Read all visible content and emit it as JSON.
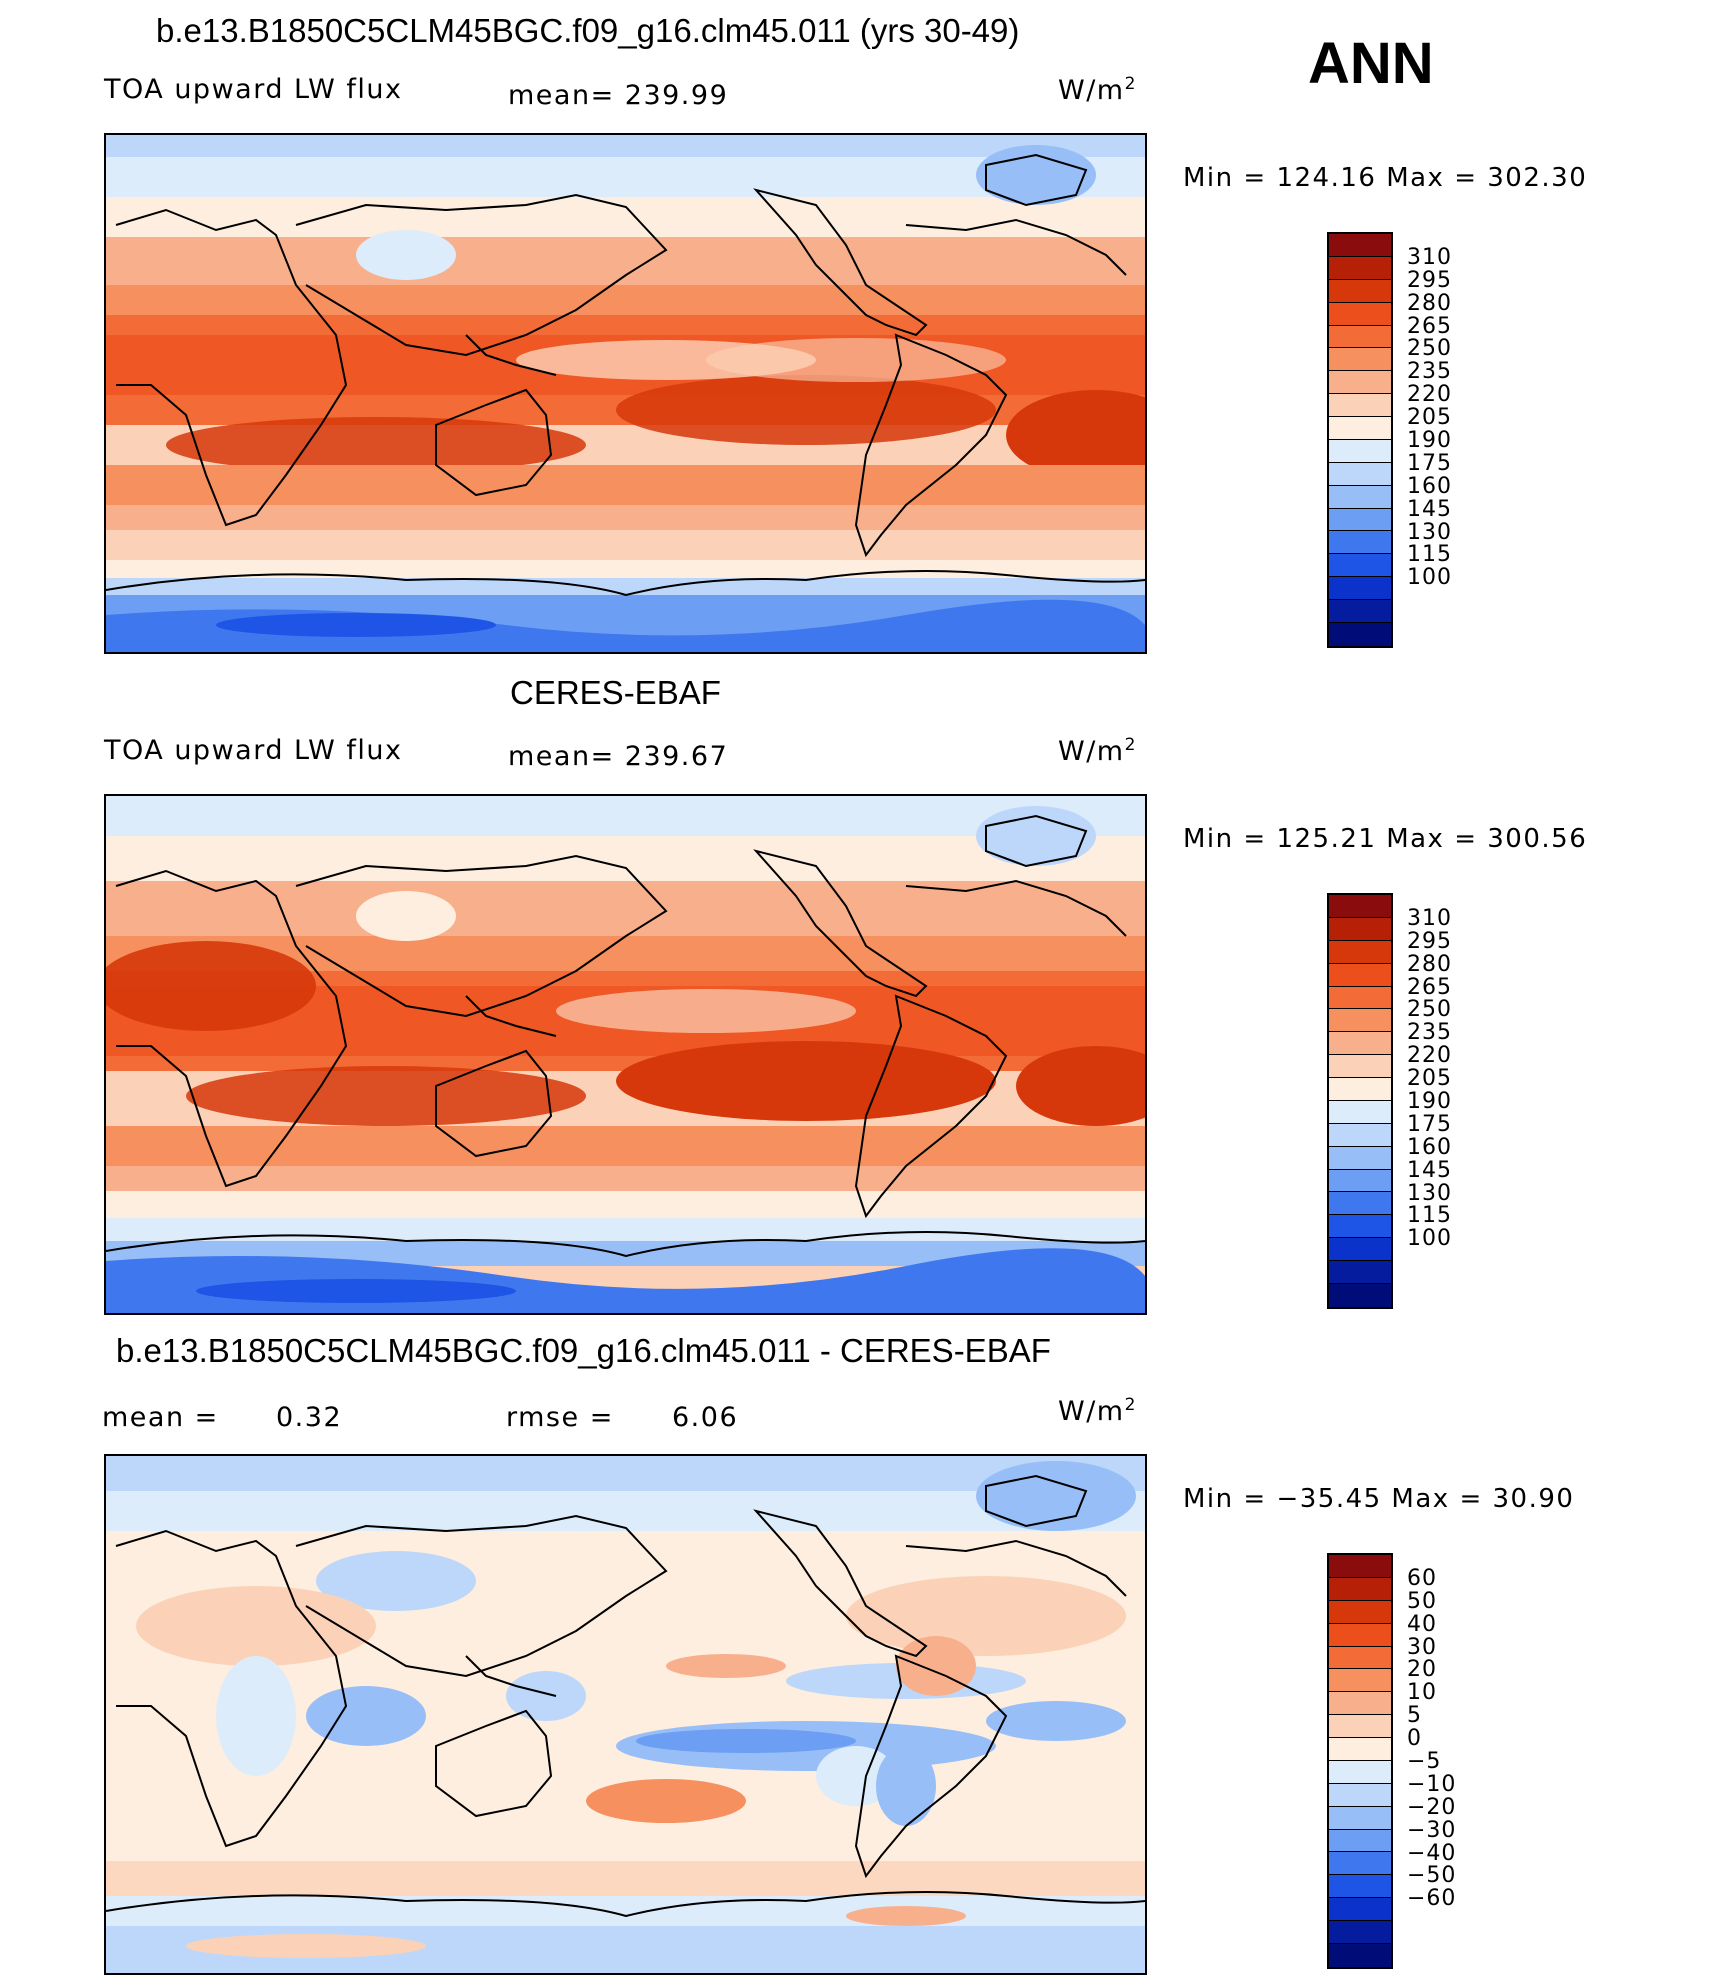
{
  "season": "ANN",
  "panels": [
    {
      "title": "b.e13.B1850C5CLM45BGC.f09_g16.clm45.011 (yrs 30-49)",
      "left": "TOA upward LW flux",
      "center": "mean= 239.99",
      "units": "W/m",
      "units_sup": "2",
      "minmax": "Min = 124.16 Max = 302.30"
    },
    {
      "title": "CERES-EBAF",
      "left": "TOA upward LW flux",
      "center": "mean= 239.67",
      "units": "W/m",
      "units_sup": "2",
      "minmax": "Min = 125.21 Max = 300.56"
    },
    {
      "title": "b.e13.B1850C5CLM45BGC.f09_g16.clm45.011 - CERES-EBAF",
      "left": "mean =",
      "left_value": "0.32",
      "center": "rmse =",
      "center_value": "6.06",
      "units": "W/m",
      "units_sup": "2",
      "minmax": "Min = −35.45 Max =  30.90"
    }
  ],
  "colorbars": {
    "field": {
      "labels": [
        "310",
        "295",
        "280",
        "265",
        "250",
        "235",
        "220",
        "205",
        "190",
        "175",
        "160",
        "145",
        "130",
        "115",
        "100"
      ],
      "colors": [
        "#8b0c0c",
        "#b52006",
        "#d6380b",
        "#ec4e1c",
        "#f36b36",
        "#f6905e",
        "#f8b08c",
        "#fbd2b8",
        "#fdeedf",
        "#dcecfb",
        "#bcd7fa",
        "#97bef7",
        "#6c9ef3",
        "#3f78ee",
        "#1e55e6",
        "#0b33cc",
        "#061c9e",
        "#000c78"
      ]
    },
    "diff": {
      "labels": [
        "60",
        "50",
        "40",
        "30",
        "20",
        "10",
        "5",
        "0",
        "−5",
        "−10",
        "−20",
        "−30",
        "−40",
        "−50",
        "−60"
      ],
      "colors": [
        "#8b0c0c",
        "#b52006",
        "#d6380b",
        "#ec4e1c",
        "#f36b36",
        "#f6905e",
        "#f8b08c",
        "#fbd2b8",
        "#fdeedf",
        "#dcecfb",
        "#bcd7fa",
        "#97bef7",
        "#6c9ef3",
        "#3f78ee",
        "#1e55e6",
        "#0b33cc",
        "#061c9e",
        "#000c78"
      ]
    }
  }
}
